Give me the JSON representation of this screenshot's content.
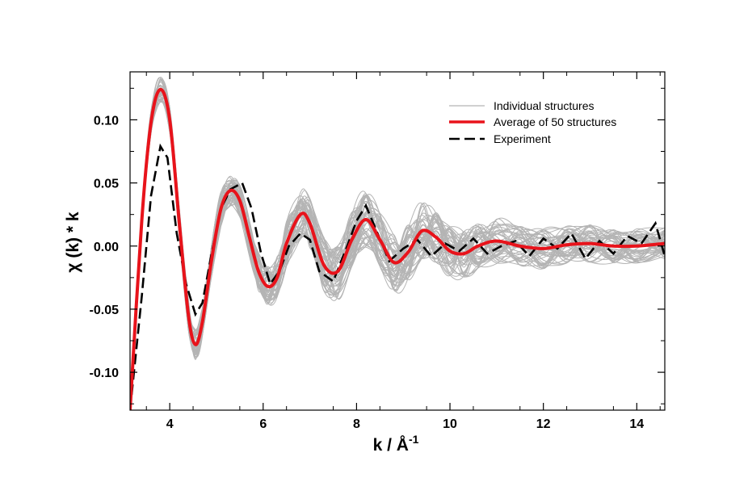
{
  "chart_data": {
    "type": "line",
    "xlabel": "k / Å",
    "xlabel_superscript": "-1",
    "ylabel": "χ (k) * k",
    "xlim": [
      3.15,
      14.6
    ],
    "ylim": [
      -0.13,
      0.138
    ],
    "xticks": [
      4,
      6,
      8,
      10,
      12,
      14
    ],
    "xtick_labels": [
      "4",
      "6",
      "8",
      "10",
      "12",
      "14"
    ],
    "yticks": [
      -0.1,
      -0.05,
      0.0,
      0.05,
      0.1
    ],
    "ytick_labels": [
      "-0.10",
      "-0.05",
      "0.00",
      "0.05",
      "0.10"
    ],
    "grid": false,
    "legend_position": "top-right",
    "legend": [
      {
        "label": "Individual structures",
        "color": "#b4b4b4",
        "style": "solid"
      },
      {
        "label": "Average of 50 structures",
        "color": "#e8131b",
        "style": "solid"
      },
      {
        "label": "Experiment",
        "color": "#000000",
        "style": "dashed"
      }
    ],
    "series": [
      {
        "name": "Average of 50 structures",
        "color": "#e8131b",
        "x": [
          3.15,
          3.4,
          3.6,
          3.8,
          4.0,
          4.2,
          4.4,
          4.55,
          4.7,
          4.9,
          5.1,
          5.3,
          5.5,
          5.7,
          5.9,
          6.1,
          6.3,
          6.5,
          6.8,
          7.0,
          7.3,
          7.6,
          7.9,
          8.2,
          8.5,
          8.8,
          9.1,
          9.4,
          9.7,
          10.0,
          10.3,
          10.6,
          11.0,
          11.5,
          12.0,
          12.5,
          13.0,
          13.5,
          14.0,
          14.6
        ],
        "y": [
          -0.13,
          0.02,
          0.098,
          0.124,
          0.1,
          0.02,
          -0.055,
          -0.078,
          -0.06,
          -0.01,
          0.03,
          0.044,
          0.036,
          0.008,
          -0.02,
          -0.032,
          -0.025,
          0.002,
          0.025,
          0.018,
          -0.015,
          -0.02,
          0.005,
          0.021,
          0.005,
          -0.013,
          -0.005,
          0.012,
          0.007,
          -0.004,
          -0.006,
          0.0,
          0.004,
          0.0,
          -0.002,
          0.001,
          0.002,
          0.0,
          0.0,
          0.002
        ]
      },
      {
        "name": "Experiment",
        "color": "#000000",
        "x": [
          3.15,
          3.4,
          3.6,
          3.8,
          3.95,
          4.15,
          4.35,
          4.55,
          4.7,
          4.9,
          5.1,
          5.3,
          5.55,
          5.75,
          5.95,
          6.15,
          6.35,
          6.55,
          6.8,
          7.0,
          7.2,
          7.5,
          7.8,
          8.0,
          8.2,
          8.45,
          8.7,
          9.0,
          9.3,
          9.6,
          9.9,
          10.2,
          10.5,
          10.8,
          11.1,
          11.4,
          11.7,
          12.0,
          12.3,
          12.6,
          12.9,
          13.2,
          13.5,
          13.8,
          14.1,
          14.4,
          14.6
        ],
        "y": [
          -0.13,
          -0.04,
          0.04,
          0.079,
          0.07,
          0.01,
          -0.03,
          -0.054,
          -0.045,
          -0.005,
          0.03,
          0.045,
          0.05,
          0.03,
          -0.005,
          -0.03,
          -0.02,
          0.0,
          0.01,
          0.005,
          -0.02,
          -0.028,
          0.0,
          0.02,
          0.032,
          0.01,
          -0.012,
          -0.002,
          0.005,
          -0.008,
          0.002,
          -0.004,
          0.006,
          -0.006,
          0.0,
          0.004,
          -0.008,
          0.006,
          -0.002,
          0.01,
          -0.01,
          0.004,
          -0.006,
          0.008,
          0.002,
          0.018,
          -0.008
        ]
      },
      {
        "name": "Individual structures",
        "color": "#b4b4b4",
        "count": 50,
        "x": [
          3.15,
          3.4,
          3.6,
          3.8,
          4.0,
          4.2,
          4.4,
          4.55,
          4.7,
          4.9,
          5.1,
          5.3,
          5.5,
          5.7,
          5.9,
          6.1,
          6.3,
          6.5,
          6.8,
          7.0,
          7.3,
          7.6,
          7.9,
          8.2,
          8.5,
          8.8,
          9.1,
          9.4,
          9.7,
          10.0,
          10.3,
          10.6,
          11.0,
          11.5,
          12.0,
          12.5,
          13.0,
          13.5,
          14.0,
          14.6
        ],
        "y_spread": [
          0.0,
          0.008,
          0.01,
          0.01,
          0.01,
          0.012,
          0.012,
          0.012,
          0.012,
          0.013,
          0.014,
          0.012,
          0.013,
          0.015,
          0.016,
          0.016,
          0.017,
          0.018,
          0.02,
          0.02,
          0.022,
          0.022,
          0.022,
          0.022,
          0.022,
          0.022,
          0.022,
          0.022,
          0.02,
          0.02,
          0.02,
          0.018,
          0.018,
          0.016,
          0.016,
          0.015,
          0.015,
          0.014,
          0.014,
          0.013
        ]
      }
    ]
  }
}
